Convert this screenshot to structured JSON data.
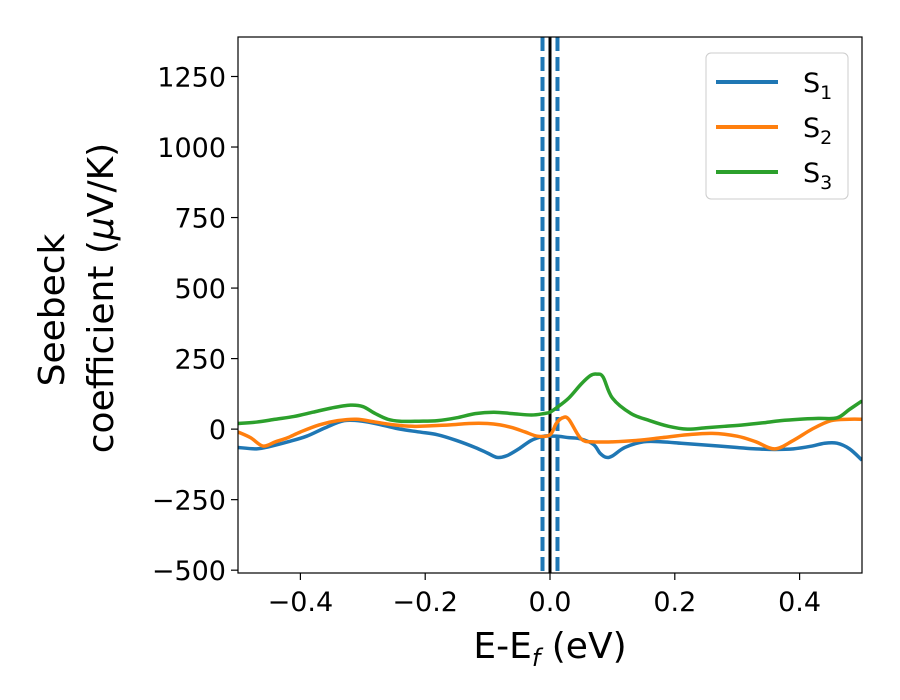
{
  "chart_data": {
    "type": "line",
    "xlabel": "E-E",
    "xlabel_sub": "f",
    "xlabel_unit": " (eV)",
    "ylabel_line1": "Seebeck",
    "ylabel_line2": "coefficient  (",
    "ylabel_mu": "μ",
    "ylabel_line2_end": "V/K)",
    "xlim": [
      -0.5,
      0.5
    ],
    "ylim": [
      -510,
      1390
    ],
    "xticks": [
      -0.4,
      -0.2,
      0.0,
      0.2,
      0.4
    ],
    "xtick_labels": [
      "−0.4",
      "−0.2",
      "0.0",
      "0.2",
      "0.4"
    ],
    "yticks": [
      -500,
      -250,
      0,
      250,
      500,
      750,
      1000,
      1250
    ],
    "ytick_labels": [
      "−500",
      "−250",
      "0",
      "250",
      "500",
      "750",
      "1000",
      "1250"
    ],
    "grid": false,
    "legend_position": "top-right",
    "series": [
      {
        "name": "S",
        "sub": "1",
        "color": "#1f77b4",
        "x": [
          -0.5,
          -0.47,
          -0.45,
          -0.42,
          -0.39,
          -0.36,
          -0.33,
          -0.3,
          -0.27,
          -0.24,
          -0.21,
          -0.18,
          -0.15,
          -0.12,
          -0.1,
          -0.085,
          -0.07,
          -0.05,
          -0.03,
          -0.01,
          0.0,
          0.01,
          0.03,
          0.05,
          0.07,
          0.08,
          0.09,
          0.1,
          0.12,
          0.15,
          0.18,
          0.21,
          0.24,
          0.27,
          0.3,
          0.33,
          0.36,
          0.39,
          0.42,
          0.44,
          0.46,
          0.48,
          0.5
        ],
        "y": [
          -65,
          -70,
          -62,
          -45,
          -25,
          5,
          30,
          28,
          15,
          0,
          -10,
          -20,
          -40,
          -65,
          -85,
          -100,
          -95,
          -70,
          -40,
          -25,
          -25,
          -25,
          -30,
          -35,
          -55,
          -85,
          -100,
          -95,
          -65,
          -45,
          -45,
          -50,
          -55,
          -60,
          -65,
          -70,
          -72,
          -70,
          -60,
          -50,
          -50,
          -70,
          -110
        ]
      },
      {
        "name": "S",
        "sub": "2",
        "color": "#ff7f0e",
        "x": [
          -0.5,
          -0.48,
          -0.46,
          -0.44,
          -0.42,
          -0.4,
          -0.37,
          -0.34,
          -0.31,
          -0.28,
          -0.25,
          -0.22,
          -0.19,
          -0.16,
          -0.13,
          -0.1,
          -0.08,
          -0.06,
          -0.04,
          -0.02,
          0.0,
          0.01,
          0.02,
          0.03,
          0.05,
          0.07,
          0.1,
          0.14,
          0.18,
          0.22,
          0.26,
          0.3,
          0.33,
          0.36,
          0.39,
          0.42,
          0.45,
          0.48,
          0.5
        ],
        "y": [
          -10,
          -30,
          -60,
          -45,
          -30,
          -10,
          15,
          30,
          35,
          25,
          15,
          10,
          12,
          15,
          20,
          20,
          15,
          5,
          -10,
          -25,
          -20,
          20,
          40,
          35,
          -35,
          -45,
          -45,
          -40,
          -30,
          -20,
          -15,
          -25,
          -45,
          -70,
          -40,
          0,
          30,
          35,
          35
        ]
      },
      {
        "name": "S",
        "sub": "3",
        "color": "#2ca02c",
        "x": [
          -0.5,
          -0.47,
          -0.44,
          -0.41,
          -0.38,
          -0.35,
          -0.32,
          -0.3,
          -0.28,
          -0.26,
          -0.24,
          -0.21,
          -0.18,
          -0.15,
          -0.12,
          -0.09,
          -0.06,
          -0.03,
          -0.01,
          0.0,
          0.01,
          0.03,
          0.05,
          0.065,
          0.075,
          0.085,
          0.1,
          0.13,
          0.16,
          0.19,
          0.22,
          0.25,
          0.28,
          0.31,
          0.34,
          0.37,
          0.4,
          0.43,
          0.46,
          0.48,
          0.5
        ],
        "y": [
          20,
          25,
          35,
          45,
          60,
          75,
          85,
          80,
          55,
          35,
          28,
          28,
          30,
          40,
          55,
          60,
          55,
          50,
          55,
          60,
          75,
          110,
          160,
          190,
          195,
          185,
          110,
          55,
          30,
          10,
          0,
          5,
          10,
          15,
          22,
          30,
          35,
          38,
          40,
          70,
          100
        ]
      }
    ],
    "vlines": [
      {
        "x": -0.012,
        "color": "#1f77b4",
        "style": "dashed"
      },
      {
        "x": 0.0,
        "color": "#000000",
        "style": "solid"
      },
      {
        "x": 0.012,
        "color": "#1f77b4",
        "style": "dashed"
      }
    ]
  }
}
